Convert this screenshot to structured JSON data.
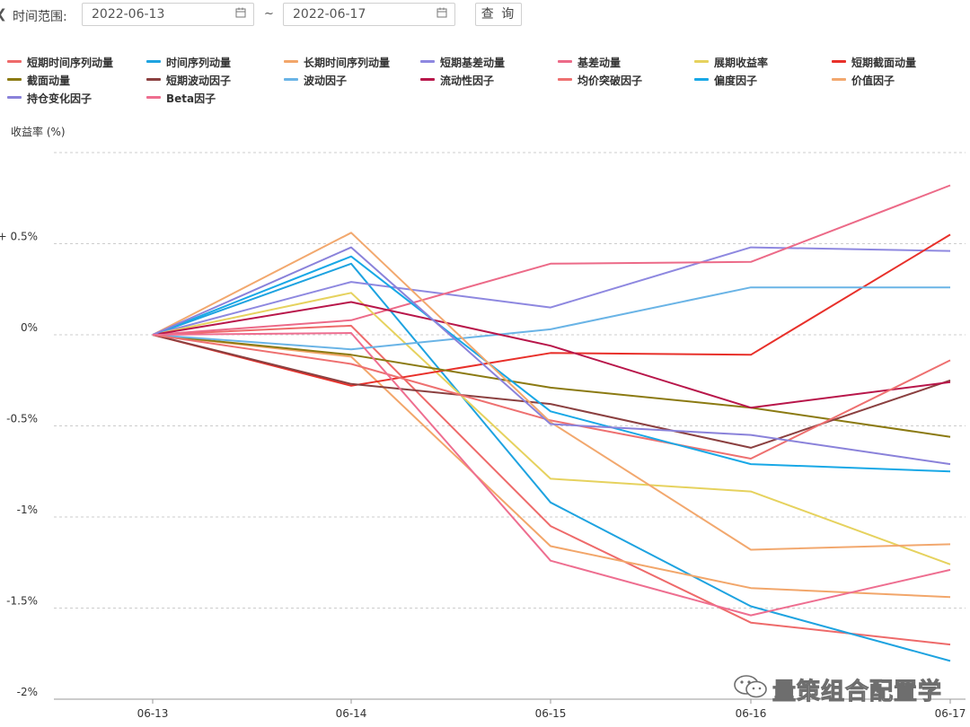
{
  "filter": {
    "toggle_icon": "collapse-left-icon",
    "range_label": "时间范围:",
    "start_date": "2022-06-13",
    "end_date": "2022-06-17",
    "separator": "~",
    "query_button": "查 询",
    "calendar_icon": "calendar-icon"
  },
  "watermark": {
    "text": "量策组合配置学",
    "icon": "wechat-icon"
  },
  "chart_data": {
    "type": "line",
    "title": "",
    "xlabel": "",
    "ylabel": "收益率 (%)",
    "categories": [
      "06-13",
      "06-14",
      "06-15",
      "06-16",
      "06-17"
    ],
    "ylim": [
      -2.0,
      1.0
    ],
    "yticks": [
      {
        "value": 0.5,
        "label": "+ 0.5%"
      },
      {
        "value": 0,
        "label": "0%"
      },
      {
        "value": -0.5,
        "label": "-0.5%"
      },
      {
        "value": -1.0,
        "label": "-1%"
      },
      {
        "value": -1.5,
        "label": "-1.5%"
      },
      {
        "value": -2.0,
        "label": "-2%"
      }
    ],
    "grid": true,
    "legend_position": "top",
    "series": [
      {
        "name": "短期时间序列动量",
        "color": "#ee6a6a",
        "values": [
          0,
          0.05,
          -1.05,
          -1.58,
          -1.7
        ]
      },
      {
        "name": "时间序列动量",
        "color": "#1ea3e0",
        "values": [
          0,
          0.39,
          -0.92,
          -1.49,
          -1.79
        ]
      },
      {
        "name": "长期时间序列动量",
        "color": "#f2a66a",
        "values": [
          0,
          -0.12,
          -1.16,
          -1.39,
          -1.44
        ]
      },
      {
        "name": "短期基差动量",
        "color": "#8e88e0",
        "values": [
          0,
          0.29,
          0.15,
          0.48,
          0.46
        ]
      },
      {
        "name": "基差动量",
        "color": "#ec6a88",
        "values": [
          0,
          0.08,
          0.39,
          0.4,
          0.82
        ]
      },
      {
        "name": "展期收益率",
        "color": "#e6d25e",
        "values": [
          0,
          0.23,
          -0.79,
          -0.86,
          -1.26
        ]
      },
      {
        "name": "短期截面动量",
        "color": "#e8302a",
        "values": [
          0,
          -0.28,
          -0.1,
          -0.11,
          0.55
        ]
      },
      {
        "name": "截面动量",
        "color": "#8b7a12",
        "values": [
          0,
          -0.11,
          -0.29,
          -0.4,
          -0.56
        ]
      },
      {
        "name": "短期波动因子",
        "color": "#8b4040",
        "values": [
          0,
          -0.27,
          -0.38,
          -0.62,
          -0.25
        ]
      },
      {
        "name": "波动因子",
        "color": "#6ab4e6",
        "values": [
          0,
          -0.08,
          0.03,
          0.26,
          0.26
        ]
      },
      {
        "name": "流动性因子",
        "color": "#b8164a",
        "values": [
          0,
          0.18,
          -0.06,
          -0.4,
          -0.26
        ]
      },
      {
        "name": "均价突破因子",
        "color": "#ee7070",
        "values": [
          0,
          -0.16,
          -0.47,
          -0.68,
          -0.14
        ]
      },
      {
        "name": "偏度因子",
        "color": "#18a8e6",
        "values": [
          0,
          0.43,
          -0.42,
          -0.71,
          -0.75
        ]
      },
      {
        "name": "价值因子",
        "color": "#f2a86e",
        "values": [
          0,
          0.56,
          -0.48,
          -1.18,
          -1.15
        ]
      },
      {
        "name": "持仓变化因子",
        "color": "#8a82da",
        "values": [
          0,
          0.48,
          -0.49,
          -0.55,
          -0.71
        ]
      },
      {
        "name": "Beta因子",
        "color": "#ee6e90",
        "values": [
          0,
          0.01,
          -1.24,
          -1.54,
          -1.29
        ]
      }
    ]
  }
}
